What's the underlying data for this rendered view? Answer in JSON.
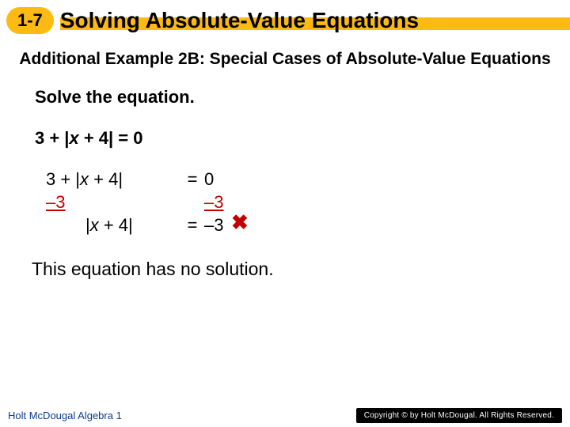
{
  "header": {
    "lesson_number": "1-7",
    "title": "Solving Absolute-Value Equations"
  },
  "subtitle": "Additional Example 2B: Special Cases of Absolute-Value Equations",
  "instruction": "Solve the equation.",
  "given_equation": "3 + |x + 4| = 0",
  "work": {
    "line1_lhs": "3 + |x + 4|",
    "line1_eq": "=",
    "line1_rhs": "0",
    "line2_lhs": "–3",
    "line2_rhs": "–3",
    "line3_lhs": "|x + 4|",
    "line3_eq": "=",
    "line3_rhs": "–3"
  },
  "conclusion": "This equation has no solution.",
  "footer": {
    "left": "Holt McDougal Algebra 1",
    "right": "Copyright © by Holt McDougal. All Rights Reserved."
  },
  "colors": {
    "accent_yellow": "#fdba12",
    "subtract_red": "#c00000",
    "footer_blue": "#0a3b8f",
    "footer_black": "#000000",
    "page_bg": "#ffffff"
  }
}
